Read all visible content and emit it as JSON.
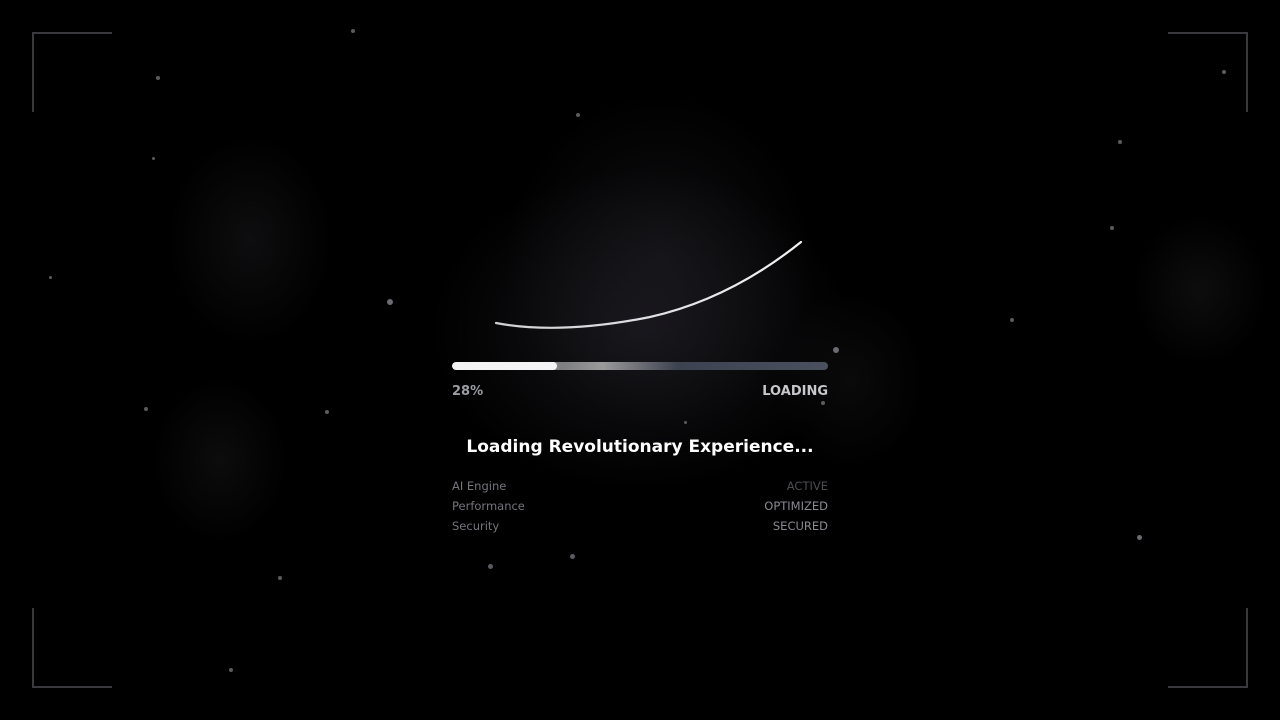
{
  "progress": {
    "percent_label": "28%",
    "value_percent": 28,
    "state_label": "LOADING"
  },
  "title": "Loading Revolutionary Experience...",
  "status": [
    {
      "label": "AI Engine",
      "value": "ACTIVE"
    },
    {
      "label": "Performance",
      "value": "OPTIMIZED"
    },
    {
      "label": "Security",
      "value": "SECURED"
    }
  ],
  "colors": {
    "background": "#000000",
    "bar_fill": "#f4f4f4",
    "text_primary": "#ffffff"
  }
}
